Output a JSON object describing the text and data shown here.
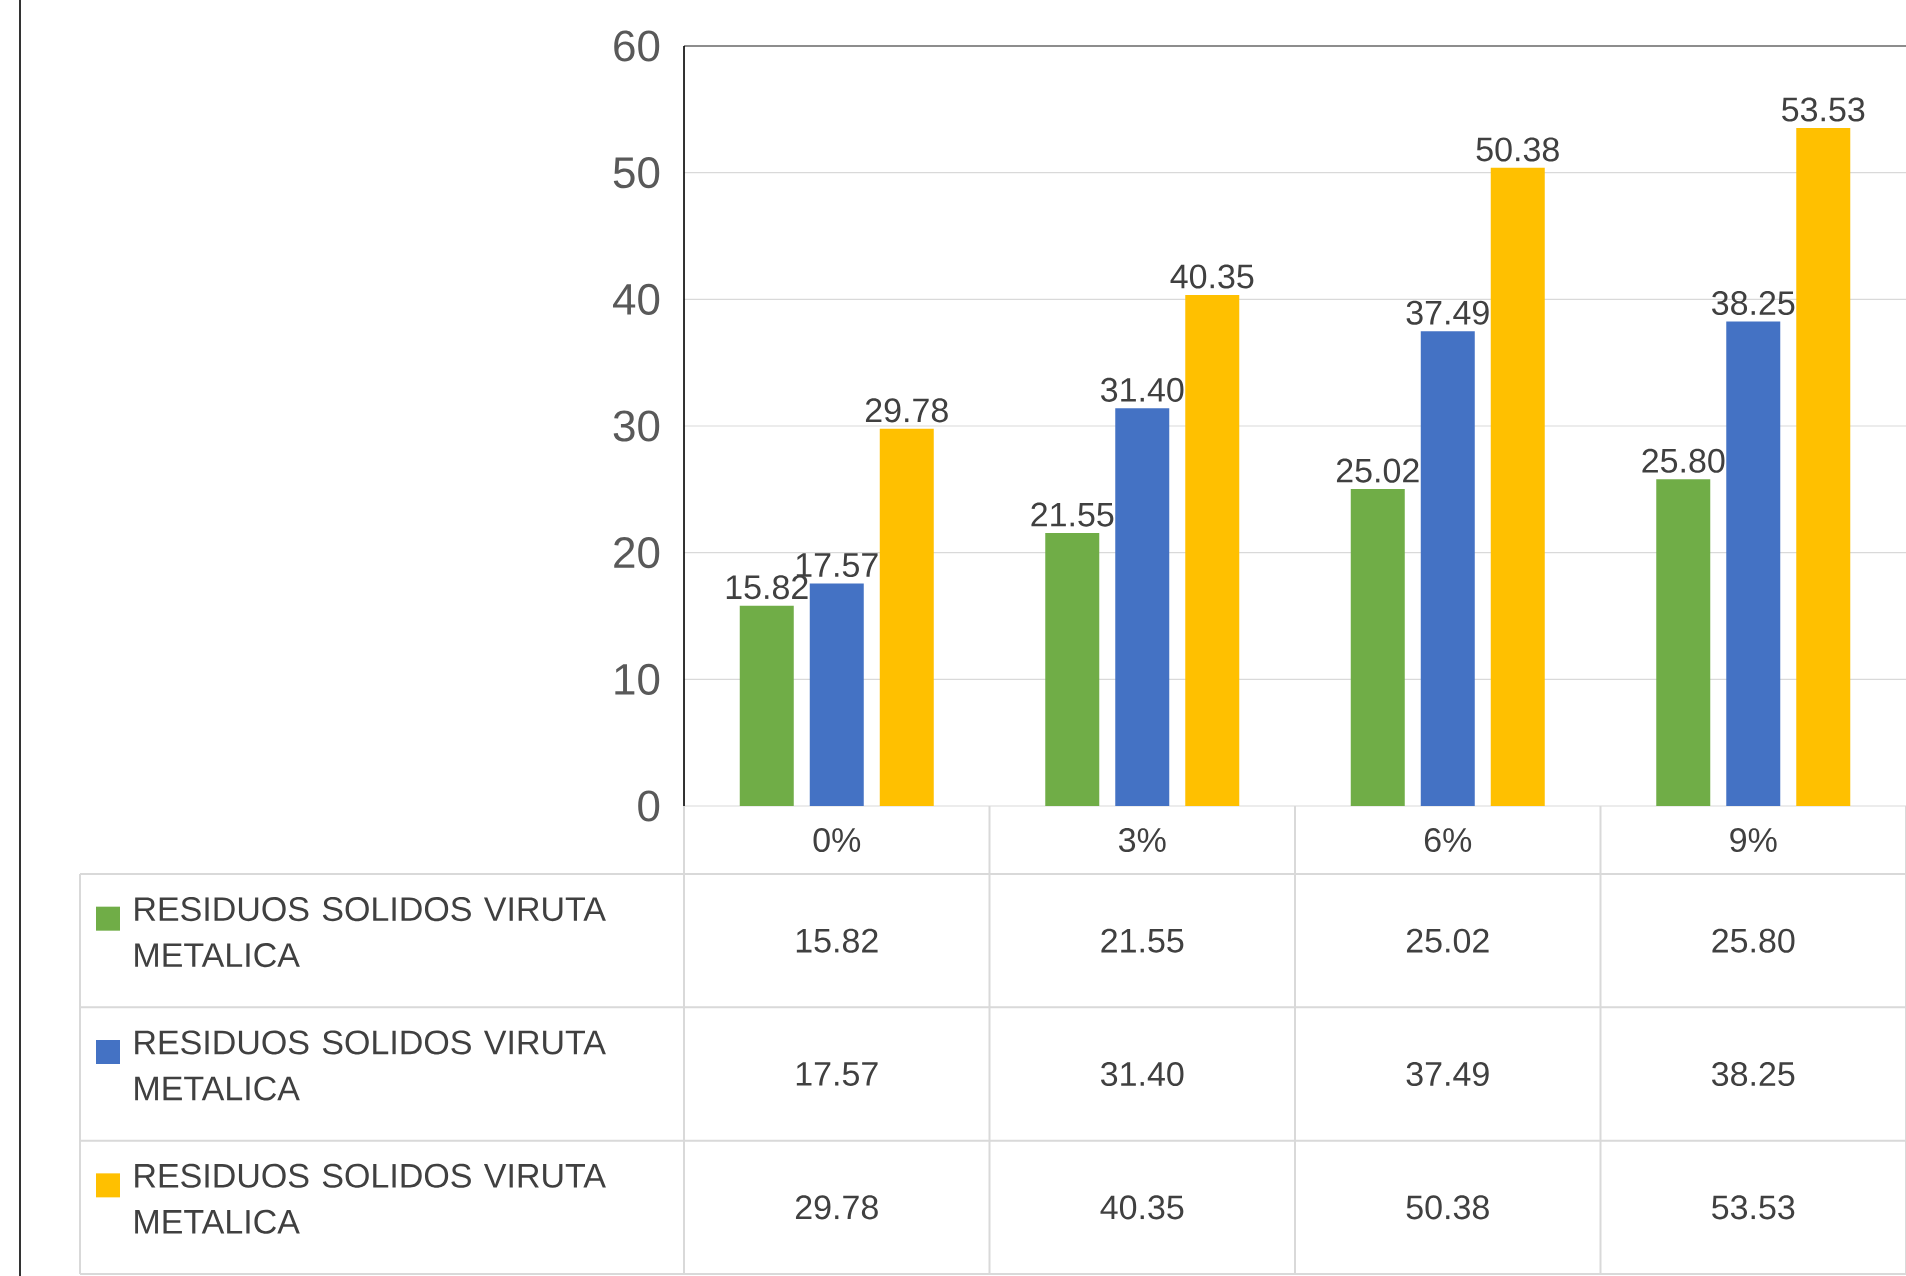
{
  "chart_data": {
    "type": "bar",
    "categories": [
      "0%",
      "3%",
      "6%",
      "9%"
    ],
    "series": [
      {
        "name": "RESIDUOS SOLIDOS VIRUTA METALICA",
        "color": "#70ad47",
        "values": [
          15.82,
          21.55,
          25.02,
          25.8
        ],
        "value_labels": [
          "15.82",
          "21.55",
          "25.02",
          "25.80"
        ]
      },
      {
        "name": "RESIDUOS SOLIDOS VIRUTA METALICA",
        "color": "#4472c4",
        "values": [
          17.57,
          31.4,
          37.49,
          38.25
        ],
        "value_labels": [
          "17.57",
          "31.40",
          "37.49",
          "38.25"
        ]
      },
      {
        "name": "RESIDUOS SOLIDOS VIRUTA METALICA",
        "color": "#ffc000",
        "values": [
          29.78,
          40.35,
          50.38,
          53.53
        ],
        "value_labels": [
          "29.78",
          "40.35",
          "50.38",
          "53.53"
        ]
      }
    ],
    "ylim": [
      0,
      60
    ],
    "yticks": [
      0,
      10,
      20,
      30,
      40,
      50,
      60
    ],
    "grid": "y",
    "legend": "bottom"
  }
}
